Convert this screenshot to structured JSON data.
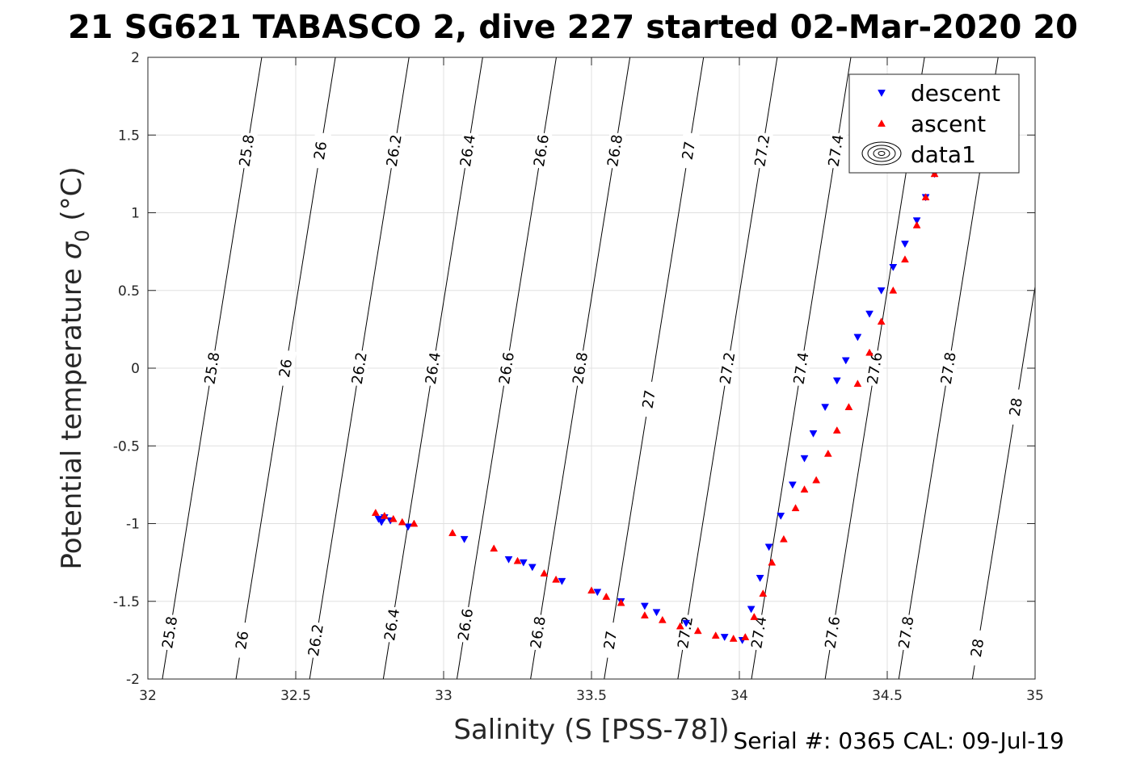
{
  "chart_data": {
    "type": "scatter",
    "title": "21 SG621 TABASCO 2, dive 227 started 02-Mar-2020 20",
    "xlabel": "Salinity (S [PSS-78])",
    "ylabel_main": "Potential temperature ",
    "ylabel_sigma": "σ",
    "ylabel_sub": "0",
    "ylabel_unit": " (°C)",
    "xlim": [
      32,
      35
    ],
    "ylim": [
      -2,
      2
    ],
    "xticks": [
      32,
      32.5,
      33,
      33.5,
      34,
      34.5,
      35
    ],
    "xtick_labels": [
      "32",
      "32.5",
      "33",
      "33.5",
      "34",
      "34.5",
      "35"
    ],
    "yticks": [
      -2,
      -1.5,
      -1,
      -0.5,
      0,
      0.5,
      1,
      1.5,
      2
    ],
    "ytick_labels": [
      "-2",
      "-1.5",
      "-1",
      "-0.5",
      "0",
      "0.5",
      "1",
      "1.5",
      "2"
    ],
    "grid": true,
    "legend_position": "top-right",
    "legend": [
      "descent",
      "ascent",
      "data1"
    ],
    "footer": "Serial #: 0365  CAL: 09-Jul-19",
    "colors": {
      "descent": "#0000ff",
      "ascent": "#ff0000",
      "contour": "#000000",
      "grid": "#e0e0e0"
    },
    "contours": [
      {
        "label": "25.8",
        "points": [
          [
            32.049,
            -2
          ],
          [
            32.385,
            2
          ]
        ],
        "label_y": [
          -1.7,
          0,
          1.4
        ]
      },
      {
        "label": "26",
        "points": [
          [
            32.298,
            -2
          ],
          [
            32.634,
            2
          ]
        ],
        "label_y": [
          -1.75,
          0,
          1.4
        ]
      },
      {
        "label": "26.2",
        "points": [
          [
            32.547,
            -2
          ],
          [
            32.883,
            2
          ]
        ],
        "label_y": [
          -1.75,
          0,
          1.4
        ]
      },
      {
        "label": "26.4",
        "points": [
          [
            32.796,
            -2
          ],
          [
            33.132,
            2
          ]
        ],
        "label_y": [
          -1.65,
          0,
          1.4
        ]
      },
      {
        "label": "26.6",
        "points": [
          [
            33.045,
            -2
          ],
          [
            33.381,
            2
          ]
        ],
        "label_y": [
          -1.65,
          0,
          1.4
        ]
      },
      {
        "label": "26.8",
        "points": [
          [
            33.294,
            -2
          ],
          [
            33.63,
            2
          ]
        ],
        "label_y": [
          -1.7,
          0,
          1.4
        ]
      },
      {
        "label": "27",
        "points": [
          [
            33.543,
            -2
          ],
          [
            33.879,
            2
          ]
        ],
        "label_y": [
          -1.75,
          -0.2,
          1.4
        ]
      },
      {
        "label": "27.2",
        "points": [
          [
            33.792,
            -2
          ],
          [
            34.128,
            2
          ]
        ],
        "label_y": [
          -1.7,
          0,
          1.4
        ]
      },
      {
        "label": "27.4",
        "points": [
          [
            34.041,
            -2
          ],
          [
            34.377,
            2
          ]
        ],
        "label_y": [
          -1.7,
          0,
          1.4
        ]
      },
      {
        "label": "27.6",
        "points": [
          [
            34.29,
            -2
          ],
          [
            34.626,
            2
          ]
        ],
        "label_y": [
          -1.7,
          0,
          1.4
        ]
      },
      {
        "label": "27.8",
        "points": [
          [
            34.539,
            -2
          ],
          [
            34.875,
            2
          ]
        ],
        "label_y": [
          -1.7,
          0,
          1.4
        ]
      },
      {
        "label": "28",
        "points": [
          [
            34.788,
            -2
          ],
          [
            35.124,
            2
          ]
        ],
        "label_y": [
          -1.8,
          -0.25,
          1.3
        ]
      }
    ],
    "series": [
      {
        "name": "descent",
        "marker": "triangle-down",
        "x": [
          32.78,
          32.79,
          32.8,
          32.82,
          32.88,
          33.07,
          33.22,
          33.27,
          33.3,
          33.4,
          33.52,
          33.6,
          33.68,
          33.72,
          33.82,
          33.95,
          34.01,
          34.04,
          34.07,
          34.1,
          34.14,
          34.18,
          34.22,
          34.25,
          34.29,
          34.33,
          34.36,
          34.4,
          34.44,
          34.48,
          34.52,
          34.56,
          34.6,
          34.63,
          34.66,
          34.69
        ],
        "y": [
          -0.97,
          -0.99,
          -0.96,
          -0.98,
          -1.02,
          -1.1,
          -1.23,
          -1.25,
          -1.28,
          -1.37,
          -1.44,
          -1.5,
          -1.53,
          -1.57,
          -1.64,
          -1.73,
          -1.75,
          -1.55,
          -1.35,
          -1.15,
          -0.95,
          -0.75,
          -0.58,
          -0.42,
          -0.25,
          -0.08,
          0.05,
          0.2,
          0.35,
          0.5,
          0.65,
          0.8,
          0.95,
          1.1,
          1.25,
          1.35
        ]
      },
      {
        "name": "ascent",
        "marker": "triangle-up",
        "x": [
          32.77,
          32.8,
          32.83,
          32.86,
          32.9,
          33.03,
          33.17,
          33.25,
          33.34,
          33.38,
          33.5,
          33.55,
          33.6,
          33.68,
          33.74,
          33.8,
          33.86,
          33.92,
          33.98,
          34.02,
          34.05,
          34.08,
          34.11,
          34.15,
          34.19,
          34.22,
          34.26,
          34.3,
          34.33,
          34.37,
          34.4,
          34.44,
          34.48,
          34.52,
          34.56,
          34.6,
          34.63,
          34.66
        ],
        "y": [
          -0.93,
          -0.95,
          -0.97,
          -0.99,
          -1.0,
          -1.06,
          -1.16,
          -1.24,
          -1.32,
          -1.36,
          -1.43,
          -1.47,
          -1.51,
          -1.59,
          -1.62,
          -1.66,
          -1.69,
          -1.72,
          -1.74,
          -1.73,
          -1.6,
          -1.45,
          -1.25,
          -1.1,
          -0.9,
          -0.78,
          -0.72,
          -0.55,
          -0.4,
          -0.25,
          -0.1,
          0.1,
          0.3,
          0.5,
          0.7,
          0.92,
          1.1,
          1.25
        ]
      }
    ]
  }
}
